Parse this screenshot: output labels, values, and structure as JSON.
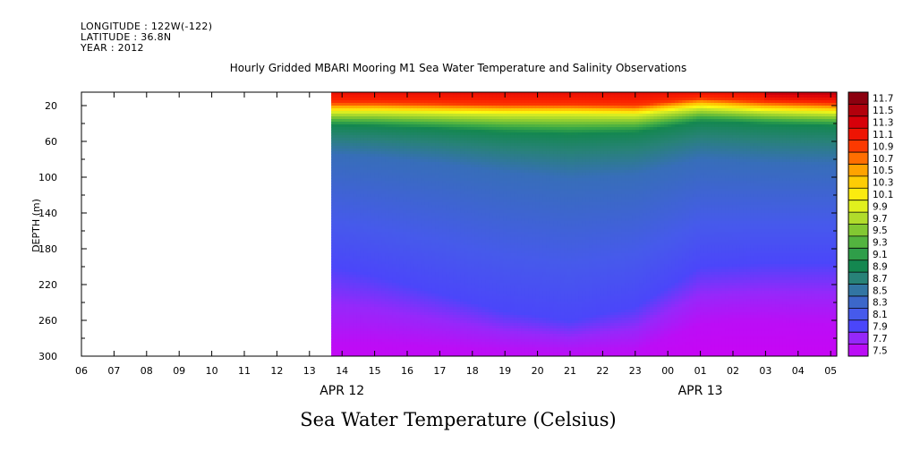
{
  "header": {
    "longitude": "LONGITUDE : 122W(-122)",
    "latitude": "LATITUDE : 36.8N",
    "year": "YEAR : 2012"
  },
  "chart_data": {
    "type": "heatmap",
    "title": "Hourly Gridded MBARI Mooring M1 Sea Water Temperature and Salinity Observations",
    "subtitle": "Sea Water Temperature (Celsius)",
    "xlabel": "",
    "ylabel": "DEPTH (m)",
    "x_ticks": [
      "06",
      "07",
      "08",
      "09",
      "10",
      "11",
      "12",
      "13",
      "14",
      "15",
      "16",
      "17",
      "18",
      "19",
      "20",
      "21",
      "22",
      "23",
      "00",
      "01",
      "02",
      "03",
      "04",
      "05"
    ],
    "x_date_labels": [
      {
        "label": "APR 12",
        "at_tick": "14"
      },
      {
        "label": "APR 13",
        "at_tick": "01"
      }
    ],
    "y_ticks": [
      20,
      60,
      100,
      140,
      180,
      220,
      260,
      300
    ],
    "ylim": [
      300,
      0
    ],
    "data_start_hour": "13:40",
    "colorbar": {
      "labels": [
        "11.7",
        "11.5",
        "11.3",
        "11.1",
        "10.9",
        "10.7",
        "10.5",
        "10.3",
        "10.1",
        "9.9",
        "9.7",
        "9.5",
        "9.3",
        "9.1",
        "8.9",
        "8.7",
        "8.5",
        "8.3",
        "8.1",
        "7.9",
        "7.7",
        "7.5"
      ],
      "range": [
        7.5,
        11.8
      ]
    },
    "isotherm_depths_m": {
      "hours": [
        13.7,
        15,
        17,
        19,
        21,
        23,
        25,
        26,
        27,
        28,
        29.2
      ],
      "T10": [
        27,
        27,
        28,
        29,
        29,
        30,
        22,
        24,
        26,
        27,
        28
      ],
      "T9": [
        42,
        43,
        46,
        50,
        52,
        50,
        38,
        39,
        41,
        42,
        43
      ],
      "T8_5": [
        75,
        78,
        85,
        95,
        102,
        98,
        80,
        82,
        84,
        85,
        86
      ],
      "T8": [
        200,
        210,
        230,
        250,
        260,
        245,
        200,
        198,
        196,
        196,
        196
      ],
      "T7_6": [
        285,
        285,
        290,
        295,
        298,
        295,
        265,
        262,
        262,
        264,
        265
      ]
    }
  }
}
